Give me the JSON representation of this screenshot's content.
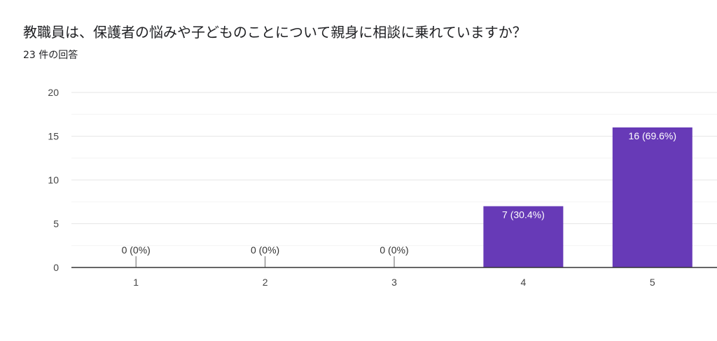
{
  "question": {
    "title": "教職員は、保護者の悩みや子どものことについて親身に相談に乗れていますか？",
    "response_count": "23 件の回答"
  },
  "colors": {
    "bar": "#673ab7",
    "axis": "#333333",
    "grid": "#e6e6e6",
    "minor_grid": "#f3f3f3"
  },
  "chart_data": {
    "type": "bar",
    "title": "",
    "xlabel": "",
    "ylabel": "",
    "ylim": [
      0,
      20
    ],
    "yticks": [
      0,
      5,
      10,
      15,
      20
    ],
    "grid": true,
    "categories": [
      "1",
      "2",
      "3",
      "4",
      "5"
    ],
    "values": [
      0,
      0,
      0,
      7,
      16
    ],
    "data_labels": [
      "0 (0%)",
      "0 (0%)",
      "0 (0%)",
      "7 (30.4%)",
      "16 (69.6%)"
    ]
  }
}
